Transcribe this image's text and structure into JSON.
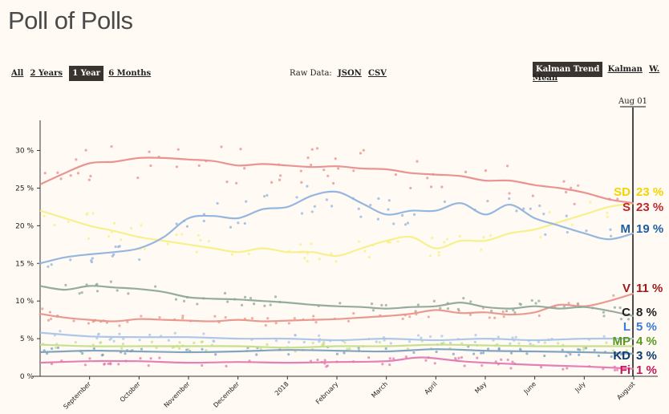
{
  "page": {
    "title": "Poll of Polls"
  },
  "range_controls": [
    {
      "label": "All",
      "active": false
    },
    {
      "label": "2 Years",
      "active": false
    },
    {
      "label": "1 Year",
      "active": true
    },
    {
      "label": "6 Months",
      "active": false
    }
  ],
  "raw_data": {
    "label": "Raw Data:",
    "links": [
      "JSON",
      "CSV"
    ]
  },
  "method_controls": [
    {
      "label": "Kalman Trend",
      "active": true
    },
    {
      "label": "Kalman",
      "active": false
    },
    {
      "label": "W. Mean",
      "active": false
    }
  ],
  "chart_data": {
    "type": "line",
    "current_date_label": "Aug 01",
    "y_ticks": [
      "0 %",
      "5 %",
      "10 %",
      "15 %",
      "20 %",
      "25 %",
      "30 %"
    ],
    "y_tick_values": [
      0,
      5,
      10,
      15,
      20,
      25,
      30
    ],
    "ylim": [
      0,
      34
    ],
    "x_tick_labels": [
      "September",
      "October",
      "November",
      "December",
      "2018",
      "February",
      "March",
      "April",
      "May",
      "June",
      "July",
      "August"
    ],
    "x_tick_positions": [
      1.0,
      2.0,
      3.0,
      4.0,
      5.0,
      6.0,
      7.0,
      8.0,
      9.0,
      10.0,
      11.0,
      12.0
    ],
    "xlim": [
      0.0,
      12.0
    ],
    "grid": false,
    "series": [
      {
        "name": "SD",
        "color": "#f2d500",
        "line_color": "#f7ef86",
        "end_label": "23 %",
        "x": [
          0,
          0.5,
          1,
          1.5,
          2,
          2.5,
          3,
          3.5,
          4,
          4.5,
          5,
          5.5,
          6,
          6.5,
          7,
          7.5,
          8,
          8.5,
          9,
          9.5,
          10,
          10.5,
          11,
          11.5,
          12
        ],
        "values": [
          22,
          21,
          20,
          19.3,
          18.5,
          18,
          17.5,
          17,
          16.5,
          17,
          16.5,
          16.5,
          16,
          17,
          18,
          18.5,
          17,
          18,
          18,
          19,
          19.5,
          20.5,
          21.5,
          22.5,
          23
        ]
      },
      {
        "name": "S",
        "color": "#c4252b",
        "line_color": "#e88e8c",
        "end_label": "23 %",
        "x": [
          0,
          0.5,
          1,
          1.5,
          2,
          2.5,
          3,
          3.5,
          4,
          4.5,
          5,
          5.5,
          6,
          6.5,
          7,
          7.5,
          8,
          8.5,
          9,
          9.5,
          10,
          10.5,
          11,
          11.5,
          12
        ],
        "values": [
          25.5,
          27,
          28.3,
          28.5,
          29,
          29,
          28.8,
          28.6,
          28,
          28.2,
          28,
          27.8,
          27.9,
          27.6,
          27.5,
          27,
          26.8,
          26.6,
          26,
          26,
          25.4,
          25,
          24.4,
          23.5,
          23
        ]
      },
      {
        "name": "M",
        "color": "#1c5fa1",
        "line_color": "#8fb3dd",
        "end_label": "19 %",
        "x": [
          0,
          0.5,
          1,
          1.5,
          2,
          2.5,
          3,
          3.5,
          4,
          4.5,
          5,
          5.5,
          6,
          6.5,
          7,
          7.5,
          8,
          8.5,
          9,
          9.5,
          10,
          10.5,
          11,
          11.5,
          12
        ],
        "values": [
          15,
          15.8,
          16.2,
          16.5,
          17,
          18.5,
          21,
          21.3,
          21,
          22.2,
          22.5,
          24,
          24.5,
          23,
          21.5,
          22,
          22,
          23,
          21.5,
          22.8,
          21,
          20,
          19,
          18.2,
          19
        ]
      },
      {
        "name": "V",
        "color": "#9b1a18",
        "line_color": "#e8958a",
        "end_label": "11 %",
        "x": [
          0,
          0.5,
          1,
          1.5,
          2,
          2.5,
          3,
          3.5,
          4,
          4.5,
          5,
          5.5,
          6,
          6.5,
          7,
          7.5,
          8,
          8.5,
          9,
          9.5,
          10,
          10.5,
          11,
          11.5,
          12
        ],
        "values": [
          8.3,
          7.8,
          7.5,
          7.3,
          7.6,
          7.5,
          7.4,
          7.3,
          7.5,
          7.3,
          7.4,
          7.5,
          7.6,
          7.8,
          8,
          8.3,
          8.8,
          8.4,
          8.5,
          8.2,
          8.5,
          9.5,
          9.3,
          10,
          11
        ]
      },
      {
        "name": "C",
        "color": "#222222",
        "line_color": "#8fa897",
        "end_label": "8 %",
        "x": [
          0,
          0.5,
          1,
          1.5,
          2,
          2.5,
          3,
          3.5,
          4,
          4.5,
          5,
          5.5,
          6,
          6.5,
          7,
          7.5,
          8,
          8.5,
          9,
          9.5,
          10,
          10.5,
          11,
          11.5,
          12
        ],
        "values": [
          12,
          11.5,
          12,
          11.8,
          11.6,
          11.2,
          10.5,
          10.3,
          10.2,
          10,
          9.8,
          9.5,
          9.3,
          9.2,
          9,
          9.2,
          9.3,
          9.8,
          9.2,
          9,
          9.3,
          9,
          9.2,
          8.7,
          8
        ]
      },
      {
        "name": "L",
        "color": "#3a7ad8",
        "line_color": "#a9c4ea",
        "end_label": "5 %",
        "x": [
          0,
          1,
          2,
          3,
          4,
          5,
          6,
          7,
          8,
          9,
          10,
          11,
          12
        ],
        "values": [
          5.8,
          5.3,
          5.2,
          5.2,
          5,
          5,
          4.8,
          5,
          4.8,
          5,
          4.8,
          5,
          5
        ]
      },
      {
        "name": "MP",
        "color": "#5a9a1e",
        "line_color": "#c5dd8a",
        "end_label": "4 %",
        "x": [
          0,
          1,
          2,
          3,
          4,
          5,
          6,
          7,
          8,
          9,
          10,
          11,
          12
        ],
        "values": [
          4.2,
          4,
          4,
          4,
          4,
          3.8,
          4,
          4,
          4.2,
          4.1,
          4,
          4,
          4
        ]
      },
      {
        "name": "KD",
        "color": "#0d3a6e",
        "line_color": "#7aa0bd",
        "end_label": "3 %",
        "x": [
          0,
          1,
          2,
          3,
          4,
          5,
          6,
          7,
          8,
          9,
          10,
          11,
          12
        ],
        "values": [
          3.2,
          3.4,
          3.3,
          3.2,
          3.3,
          3.5,
          3.4,
          3.3,
          3.6,
          3.4,
          3.3,
          3.2,
          3
        ]
      },
      {
        "name": "Fi",
        "color": "#c2185b",
        "line_color": "#e07ab0",
        "end_label": "1 %",
        "x": [
          0,
          1,
          2,
          3,
          4,
          5,
          6,
          7,
          7.7,
          8.5,
          9,
          10,
          11,
          12
        ],
        "values": [
          1.8,
          2,
          2,
          1.8,
          1.9,
          1.8,
          1.9,
          2,
          2.5,
          2,
          1.8,
          1.5,
          1.3,
          1
        ]
      }
    ]
  }
}
